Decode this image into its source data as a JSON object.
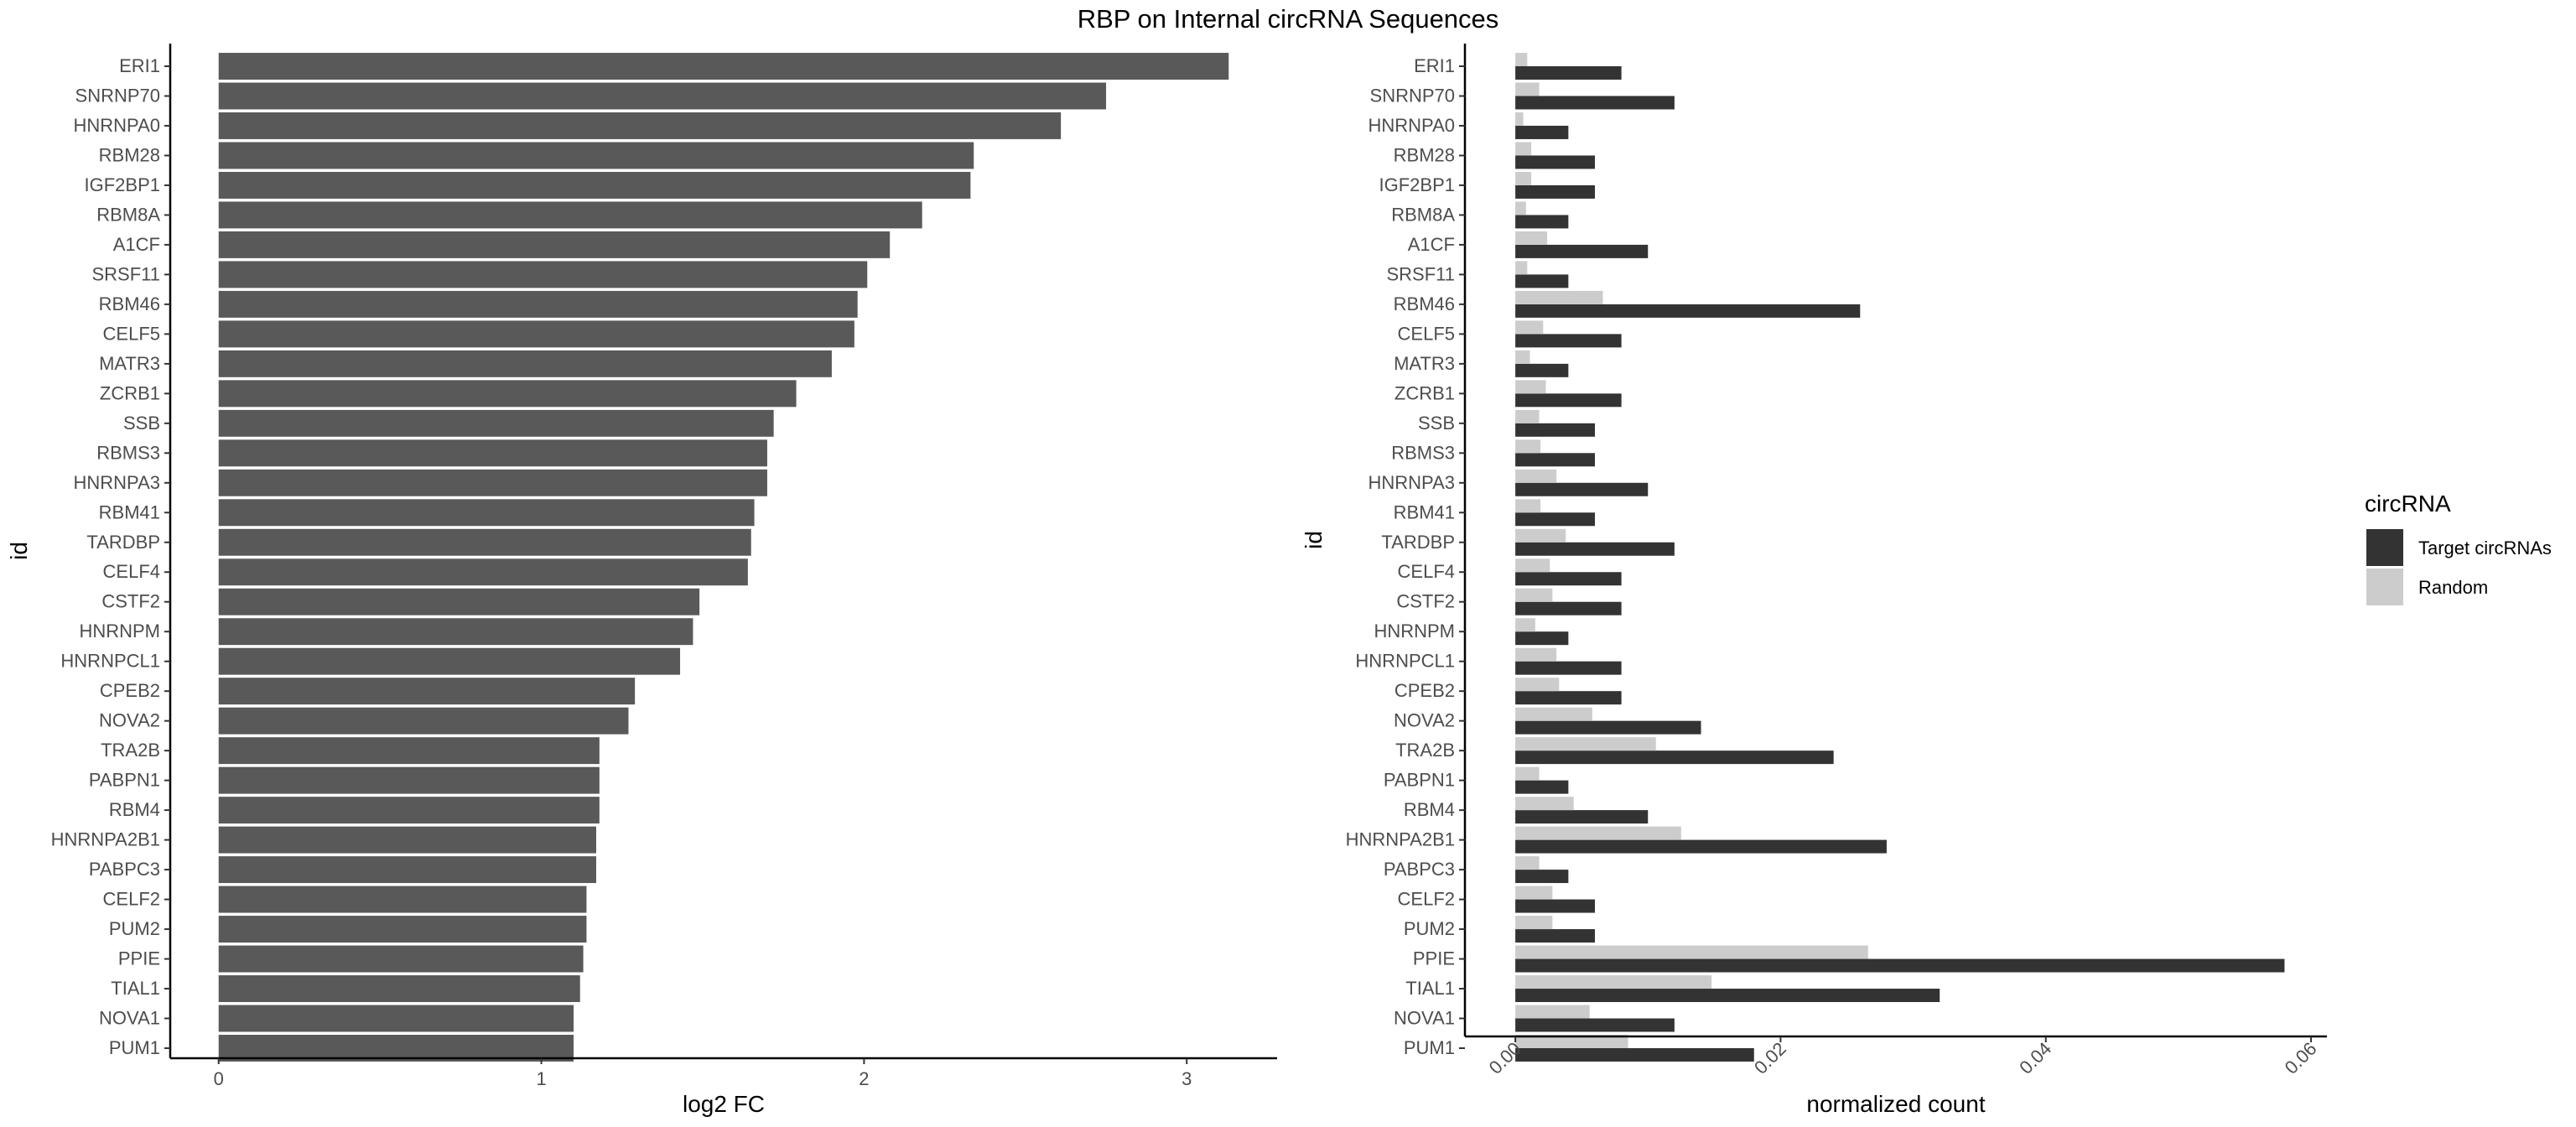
{
  "title": "RBP on Internal circRNA Sequences",
  "chart_data": [
    {
      "type": "bar",
      "orientation": "horizontal",
      "xlabel": "log2 FC",
      "ylabel": "id",
      "xlim": [
        -0.15,
        3.28
      ],
      "xticks": [
        0,
        1,
        2,
        3
      ],
      "grid": false,
      "color": "#595959",
      "categories": [
        "ERI1",
        "SNRNP70",
        "HNRNPA0",
        "RBM28",
        "IGF2BP1",
        "RBM8A",
        "A1CF",
        "SRSF11",
        "RBM46",
        "CELF5",
        "MATR3",
        "ZCRB1",
        "SSB",
        "RBMS3",
        "HNRNPA3",
        "RBM41",
        "TARDBP",
        "CELF4",
        "CSTF2",
        "HNRNPM",
        "HNRNPCL1",
        "CPEB2",
        "NOVA2",
        "TRA2B",
        "PABPN1",
        "RBM4",
        "HNRNPA2B1",
        "PABPC3",
        "CELF2",
        "PUM2",
        "PPIE",
        "TIAL1",
        "NOVA1",
        "PUM1"
      ],
      "values": [
        3.13,
        2.75,
        2.61,
        2.34,
        2.33,
        2.18,
        2.08,
        2.01,
        1.98,
        1.97,
        1.9,
        1.79,
        1.72,
        1.7,
        1.7,
        1.66,
        1.65,
        1.64,
        1.49,
        1.47,
        1.43,
        1.29,
        1.27,
        1.18,
        1.18,
        1.18,
        1.17,
        1.17,
        1.14,
        1.14,
        1.13,
        1.12,
        1.1,
        1.1
      ]
    },
    {
      "type": "bar",
      "orientation": "horizontal",
      "grouped": true,
      "xlabel": "normalized count",
      "ylabel": "id",
      "xlim": [
        -0.0038,
        0.0612
      ],
      "xticks": [
        "0.00",
        "0.02",
        "0.04",
        "0.06"
      ],
      "xtick_rotation": -45,
      "grid": false,
      "legend": {
        "title": "circRNA",
        "position": "right"
      },
      "categories": [
        "ERI1",
        "SNRNP70",
        "HNRNPA0",
        "RBM28",
        "IGF2BP1",
        "RBM8A",
        "A1CF",
        "SRSF11",
        "RBM46",
        "CELF5",
        "MATR3",
        "ZCRB1",
        "SSB",
        "RBMS3",
        "HNRNPA3",
        "RBM41",
        "TARDBP",
        "CELF4",
        "CSTF2",
        "HNRNPM",
        "HNRNPCL1",
        "CPEB2",
        "NOVA2",
        "TRA2B",
        "PABPN1",
        "RBM4",
        "HNRNPA2B1",
        "PABPC3",
        "CELF2",
        "PUM2",
        "PPIE",
        "TIAL1",
        "NOVA1",
        "PUM1"
      ],
      "series": [
        {
          "name": "Target circRNAs",
          "color": "#333333",
          "values": [
            0.008,
            0.012,
            0.004,
            0.006,
            0.006,
            0.004,
            0.01,
            0.004,
            0.026,
            0.008,
            0.004,
            0.008,
            0.006,
            0.006,
            0.01,
            0.006,
            0.012,
            0.008,
            0.008,
            0.004,
            0.008,
            0.008,
            0.014,
            0.024,
            0.004,
            0.01,
            0.028,
            0.004,
            0.006,
            0.006,
            0.058,
            0.032,
            0.012,
            0.018
          ]
        },
        {
          "name": "Random",
          "color": "#cccccc",
          "values": [
            0.0009,
            0.0018,
            0.0006,
            0.0012,
            0.0012,
            0.0008,
            0.0024,
            0.0009,
            0.0066,
            0.0021,
            0.0011,
            0.0023,
            0.0018,
            0.0019,
            0.0031,
            0.0019,
            0.0038,
            0.0026,
            0.0028,
            0.0015,
            0.0031,
            0.0033,
            0.0058,
            0.0106,
            0.0018,
            0.0044,
            0.0125,
            0.0018,
            0.0028,
            0.0028,
            0.0266,
            0.0148,
            0.0056,
            0.0085
          ]
        }
      ]
    }
  ]
}
